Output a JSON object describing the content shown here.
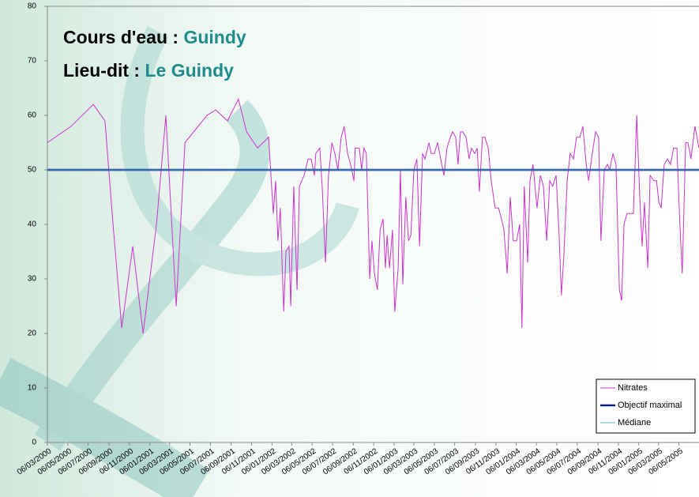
{
  "chart_data": {
    "type": "line",
    "title_lines": [
      {
        "label": "Cours d'eau :",
        "value": "Guindy"
      },
      {
        "label": "Lieu-dit :",
        "value": "Le Guindy"
      }
    ],
    "title_color": "#1f8c8c",
    "ylim": [
      0,
      80
    ],
    "yticks": [
      0,
      10,
      20,
      30,
      40,
      50,
      60,
      70,
      80
    ],
    "xlim": [
      "06/03/2000",
      "05/07/2005"
    ],
    "xticks": [
      "06/03/2000",
      "06/05/2000",
      "06/07/2000",
      "06/09/2000",
      "06/11/2000",
      "06/01/2001",
      "06/03/2001",
      "06/05/2001",
      "06/07/2001",
      "06/09/2001",
      "06/11/2001",
      "06/01/2002",
      "06/03/2002",
      "06/05/2002",
      "06/07/2002",
      "06/09/2002",
      "06/11/2002",
      "06/01/2003",
      "06/03/2003",
      "06/05/2003",
      "06/07/2003",
      "06/09/2003",
      "06/11/2003",
      "06/01/2004",
      "06/03/2004",
      "06/05/2004",
      "06/07/2004",
      "06/09/2004",
      "06/11/2004",
      "06/01/2005",
      "06/03/2005",
      "06/05/2005"
    ],
    "series": [
      {
        "name": "Nitrates",
        "color": "#cc33cc",
        "x": [
          "06/03/2000",
          "16/05/2000",
          "21/07/2000",
          "25/08/2000",
          "18/09/2000",
          "14/10/2000",
          "16/11/2000",
          "17/12/2000",
          "26/01/2001",
          "23/02/2001",
          "26/03/2001",
          "21/04/2001",
          "26/06/2001",
          "22/07/2001",
          "26/08/2001",
          "28/09/2001",
          "22/10/2001",
          "24/11/2001",
          "27/12/2001",
          "10/01/2002",
          "17/01/2002",
          "24/01/2002",
          "31/01/2002",
          "10/02/2002",
          "17/02/2002",
          "26/02/2002",
          "03/03/2002",
          "12/03/2002",
          "22/03/2002",
          "29/03/2002",
          "12/04/2002",
          "24/04/2002",
          "03/05/2002",
          "13/05/2002",
          "17/05/2002",
          "29/05/2002",
          "05/06/2002",
          "15/06/2002",
          "24/06/2002",
          "04/07/2002",
          "13/07/2002",
          "22/07/2002",
          "01/08/2002",
          "10/08/2002",
          "20/08/2002",
          "29/08/2002",
          "08/09/2002",
          "12/09/2002",
          "24/09/2002",
          "01/10/2002",
          "08/10/2002",
          "15/10/2002",
          "25/10/2002",
          "01/11/2002",
          "08/11/2002",
          "17/11/2002",
          "25/11/2002",
          "04/12/2002",
          "11/12/2002",
          "16/12/2002",
          "23/12/2002",
          "01/01/2003",
          "08/01/2003",
          "18/01/2003",
          "25/01/2003",
          "01/02/2003",
          "10/02/2003",
          "18/02/2003",
          "25/02/2003",
          "06/03/2003",
          "15/03/2003",
          "23/03/2003",
          "01/04/2003",
          "08/04/2003",
          "20/04/2003",
          "27/04/2003",
          "06/05/2003",
          "16/05/2003",
          "25/05/2003",
          "04/06/2003",
          "13/06/2003",
          "23/06/2003",
          "30/06/2003",
          "09/07/2003",
          "16/07/2003",
          "23/07/2003",
          "30/07/2003",
          "09/08/2003",
          "18/08/2003",
          "25/08/2003",
          "04/09/2003",
          "11/09/2003",
          "18/09/2003",
          "27/09/2003",
          "04/10/2003",
          "14/10/2003",
          "23/10/2003",
          "04/11/2003",
          "14/11/2003",
          "23/11/2003",
          "30/11/2003",
          "10/12/2003",
          "19/12/2003",
          "28/12/2003",
          "07/01/2004",
          "16/01/2004",
          "23/01/2004",
          "30/01/2004",
          "09/02/2004",
          "16/02/2004",
          "25/02/2004",
          "08/03/2004",
          "18/03/2004",
          "27/03/2004",
          "06/04/2004",
          "15/04/2004",
          "24/04/2004",
          "04/05/2004",
          "13/05/2004",
          "20/05/2004",
          "27/05/2004",
          "06/06/2004",
          "15/06/2004",
          "25/06/2004",
          "04/07/2004",
          "14/07/2004",
          "23/07/2004",
          "02/08/2004",
          "09/08/2004",
          "20/08/2004",
          "30/08/2004",
          "08/09/2004",
          "15/09/2004",
          "25/09/2004",
          "04/10/2004",
          "11/10/2004",
          "21/10/2004",
          "30/10/2004",
          "09/11/2004",
          "16/11/2004",
          "23/11/2004",
          "02/12/2004",
          "12/12/2004",
          "21/12/2004",
          "31/12/2004",
          "09/01/2005",
          "16/01/2005",
          "23/01/2005",
          "02/02/2005",
          "09/02/2005",
          "20/02/2005",
          "28/02/2005",
          "07/03/2005",
          "14/03/2005",
          "23/03/2005",
          "02/04/2005",
          "11/04/2005",
          "20/04/2005",
          "30/04/2005",
          "09/05/2005",
          "16/05/2005",
          "26/05/2005",
          "02/06/2005",
          "11/06/2005",
          "23/06/2005",
          "05/07/2005"
        ],
        "values": [
          55,
          58,
          62,
          59,
          40,
          21,
          36,
          20,
          40,
          60,
          25,
          55,
          60,
          61,
          59,
          63,
          57,
          54,
          56,
          42,
          48,
          37,
          43,
          24,
          35,
          36,
          25,
          47,
          28,
          47,
          49,
          52,
          52,
          49,
          53,
          54,
          47,
          33,
          49,
          55,
          53,
          50,
          56,
          58,
          53,
          51,
          48,
          54,
          54,
          50,
          54,
          53,
          30,
          37,
          31,
          28,
          39,
          41,
          32,
          38,
          32,
          39,
          24,
          32,
          50,
          29,
          45,
          37,
          38,
          50,
          52,
          36,
          53,
          52,
          55,
          53,
          53,
          55,
          52,
          49,
          54,
          56,
          57,
          56,
          51,
          57,
          57,
          56,
          52,
          54,
          53,
          54,
          46,
          56,
          56,
          54,
          48,
          43,
          43,
          41,
          39,
          31,
          45,
          37,
          37,
          40,
          21,
          47,
          33,
          48,
          51,
          43,
          49,
          47,
          37,
          48,
          47,
          49,
          38,
          27,
          34,
          48,
          53,
          52,
          56,
          56,
          58,
          51,
          48,
          53,
          57,
          56,
          37,
          50,
          51,
          50,
          53,
          51,
          28,
          26,
          40,
          42,
          42,
          42,
          60,
          45,
          36,
          44,
          32,
          49,
          48,
          48,
          44,
          43,
          51,
          52,
          51,
          54,
          54,
          40,
          31,
          55,
          55,
          52,
          58,
          54
        ]
      },
      {
        "name": "Objectif maximal",
        "color": "#0a1f7a",
        "value": 50
      },
      {
        "name": "Médiane",
        "color": "#5ab4e6",
        "value": 50
      }
    ]
  }
}
